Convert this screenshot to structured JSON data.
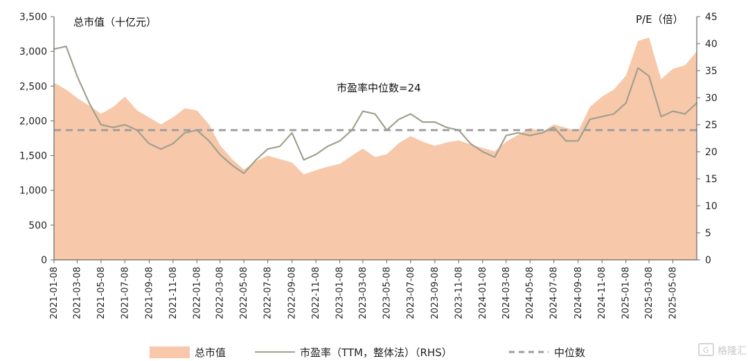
{
  "chart_data": {
    "type": "area",
    "left_axis_title": "总市值（十亿元）",
    "right_axis_title": "P/E（倍）",
    "annotation": "市盈率中位数=24",
    "x_tick_labels": [
      "2021-01-08",
      "2021-03-08",
      "2021-05-08",
      "2021-07-08",
      "2021-09-08",
      "2021-11-08",
      "2022-01-08",
      "2022-03-08",
      "2022-05-08",
      "2022-07-08",
      "2022-09-08",
      "2022-11-08",
      "2023-01-08",
      "2023-03-08",
      "2023-05-08",
      "2023-07-08",
      "2023-09-08",
      "2023-11-08",
      "2024-01-08",
      "2024-03-08",
      "2024-05-08",
      "2024-07-08",
      "2024-09-08",
      "2024-11-08",
      "2025-01-08",
      "2025-03-08",
      "2025-05-08"
    ],
    "left_axis": {
      "min": 0,
      "max": 3500,
      "ticks": [
        0,
        500,
        1000,
        1500,
        2000,
        2500,
        3000,
        3500
      ],
      "tick_labels": [
        "0",
        "500",
        "1,000",
        "1,500",
        "2,000",
        "2,500",
        "3,000",
        "3,500"
      ]
    },
    "right_axis": {
      "min": 0,
      "max": 45,
      "ticks": [
        0,
        5,
        10,
        15,
        20,
        25,
        30,
        35,
        40,
        45
      ],
      "tick_labels": [
        "0",
        "5",
        "10",
        "15",
        "20",
        "25",
        "30",
        "35",
        "40",
        "45"
      ]
    },
    "series": [
      {
        "name": "总市值",
        "kind": "area",
        "axis": "left",
        "color": "#f7c8aa",
        "x": [
          "2021-01-08",
          "2021-02-08",
          "2021-03-08",
          "2021-04-08",
          "2021-05-08",
          "2021-06-08",
          "2021-07-08",
          "2021-08-08",
          "2021-09-08",
          "2021-10-08",
          "2021-11-08",
          "2021-12-08",
          "2022-01-08",
          "2022-02-08",
          "2022-03-08",
          "2022-04-08",
          "2022-05-08",
          "2022-06-08",
          "2022-07-08",
          "2022-08-08",
          "2022-09-08",
          "2022-10-08",
          "2022-11-08",
          "2022-12-08",
          "2023-01-08",
          "2023-02-08",
          "2023-03-08",
          "2023-04-08",
          "2023-05-08",
          "2023-06-08",
          "2023-07-08",
          "2023-08-08",
          "2023-09-08",
          "2023-10-08",
          "2023-11-08",
          "2023-12-08",
          "2024-01-08",
          "2024-02-08",
          "2024-03-08",
          "2024-04-08",
          "2024-05-08",
          "2024-06-08",
          "2024-07-08",
          "2024-08-08",
          "2024-09-08",
          "2024-10-08",
          "2024-11-08",
          "2024-12-08",
          "2025-01-08",
          "2025-02-08",
          "2025-03-08",
          "2025-04-08",
          "2025-05-08",
          "2025-06-08",
          "2025-07-08"
        ],
        "values": [
          2550,
          2450,
          2330,
          2220,
          2100,
          2200,
          2350,
          2150,
          2050,
          1950,
          2050,
          2180,
          2150,
          1950,
          1650,
          1450,
          1300,
          1420,
          1500,
          1450,
          1400,
          1230,
          1290,
          1340,
          1380,
          1500,
          1600,
          1480,
          1520,
          1680,
          1780,
          1700,
          1640,
          1690,
          1720,
          1660,
          1610,
          1560,
          1700,
          1800,
          1900,
          1840,
          1950,
          1900,
          1850,
          2200,
          2350,
          2450,
          2650,
          3150,
          3200,
          2600,
          2750,
          2800,
          3000
        ]
      },
      {
        "name": "市盈率（TTM，整体法）（RHS）",
        "kind": "line",
        "axis": "right",
        "color": "#a0a08e",
        "x": [
          "2021-01-08",
          "2021-02-08",
          "2021-03-08",
          "2021-04-08",
          "2021-05-08",
          "2021-06-08",
          "2021-07-08",
          "2021-08-08",
          "2021-09-08",
          "2021-10-08",
          "2021-11-08",
          "2021-12-08",
          "2022-01-08",
          "2022-02-08",
          "2022-03-08",
          "2022-04-08",
          "2022-05-08",
          "2022-06-08",
          "2022-07-08",
          "2022-08-08",
          "2022-09-08",
          "2022-10-08",
          "2022-11-08",
          "2022-12-08",
          "2023-01-08",
          "2023-02-08",
          "2023-03-08",
          "2023-04-08",
          "2023-05-08",
          "2023-06-08",
          "2023-07-08",
          "2023-08-08",
          "2023-09-08",
          "2023-10-08",
          "2023-11-08",
          "2023-12-08",
          "2024-01-08",
          "2024-02-08",
          "2024-03-08",
          "2024-04-08",
          "2024-05-08",
          "2024-06-08",
          "2024-07-08",
          "2024-08-08",
          "2024-09-08",
          "2024-10-08",
          "2024-11-08",
          "2024-12-08",
          "2025-01-08",
          "2025-02-08",
          "2025-03-08",
          "2025-04-08",
          "2025-05-08",
          "2025-06-08",
          "2025-07-08"
        ],
        "values": [
          39.0,
          39.5,
          34.0,
          29.0,
          25.0,
          24.5,
          25.0,
          24.0,
          21.5,
          20.5,
          21.5,
          23.5,
          24.0,
          22.0,
          19.5,
          17.5,
          16.0,
          18.5,
          20.5,
          21.0,
          23.5,
          18.5,
          19.5,
          21.0,
          22.0,
          24.0,
          27.5,
          27.0,
          24.0,
          26.0,
          27.0,
          25.5,
          25.5,
          24.5,
          24.0,
          21.5,
          20.0,
          19.0,
          23.0,
          23.5,
          23.0,
          23.5,
          24.5,
          22.0,
          22.0,
          26.0,
          26.5,
          27.0,
          29.0,
          35.5,
          34.0,
          26.5,
          27.5,
          27.0,
          29.0
        ]
      },
      {
        "name": "中位数",
        "kind": "dashed-line",
        "axis": "right",
        "color": "#9d9d9d",
        "value": 24
      }
    ],
    "legend": {
      "placement": "bottom",
      "items": [
        "总市值",
        "市盈率（TTM，整体法）（RHS）",
        "中位数"
      ]
    },
    "watermark": "格隆汇"
  }
}
